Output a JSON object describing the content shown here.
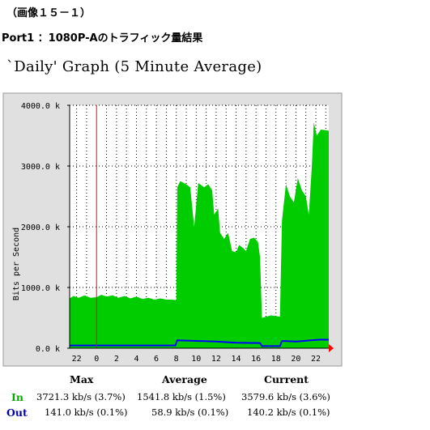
{
  "caption": "（画像１５－１）",
  "port_title": "Port1 ：1080P-Aのトラフィック量結果",
  "graph_title": "`Daily' Graph (5 Minute Average)",
  "chart_data": {
    "type": "area",
    "ylabel": "Bits per Second",
    "ylim": [
      0,
      4000
    ],
    "yticks": [
      0,
      1000,
      2000,
      3000,
      4000
    ],
    "ytick_labels": [
      "0.0 k",
      "1000.0 k",
      "2000.0 k",
      "3000.0 k",
      "4000.0 k"
    ],
    "xtick_labels": [
      "22",
      "0",
      "2",
      "4",
      "6",
      "8",
      "10",
      "12",
      "14",
      "16",
      "18",
      "20",
      "22"
    ],
    "x_hours_span": [
      -2.7,
      23.3
    ],
    "midnight_marker_hour": 0,
    "grid": true,
    "colors": {
      "plot_bg": "#ffffff",
      "frame_bg": "#e0e0e0",
      "in": "#00cc00",
      "out": "#0000ff",
      "grid": "#000000",
      "marker": "#ff0000"
    },
    "series": [
      {
        "name": "In",
        "color": "#00cc00",
        "points": [
          [
            -2.7,
            820
          ],
          [
            -2.3,
            860
          ],
          [
            -1.8,
            830
          ],
          [
            -1.2,
            870
          ],
          [
            -0.6,
            830
          ],
          [
            0,
            840
          ],
          [
            0.5,
            880
          ],
          [
            1.0,
            850
          ],
          [
            1.6,
            870
          ],
          [
            2.2,
            830
          ],
          [
            2.8,
            860
          ],
          [
            3.4,
            820
          ],
          [
            4.0,
            850
          ],
          [
            4.6,
            810
          ],
          [
            5.2,
            830
          ],
          [
            5.8,
            800
          ],
          [
            6.4,
            820
          ],
          [
            7.0,
            800
          ],
          [
            7.6,
            800
          ],
          [
            8.0,
            790
          ],
          [
            8.1,
            2650
          ],
          [
            8.4,
            2750
          ],
          [
            9.0,
            2700
          ],
          [
            9.4,
            2650
          ],
          [
            9.8,
            2000
          ],
          [
            10.2,
            2720
          ],
          [
            10.8,
            2650
          ],
          [
            11.2,
            2700
          ],
          [
            11.6,
            2600
          ],
          [
            11.8,
            2200
          ],
          [
            12.2,
            2300
          ],
          [
            12.4,
            1900
          ],
          [
            12.8,
            1800
          ],
          [
            13.2,
            1900
          ],
          [
            13.6,
            1600
          ],
          [
            14.0,
            1580
          ],
          [
            14.3,
            1700
          ],
          [
            14.7,
            1650
          ],
          [
            15.0,
            1600
          ],
          [
            15.4,
            1800
          ],
          [
            15.8,
            1820
          ],
          [
            16.2,
            1750
          ],
          [
            16.4,
            1500
          ],
          [
            16.6,
            500
          ],
          [
            17.5,
            540
          ],
          [
            18.4,
            520
          ],
          [
            18.6,
            2100
          ],
          [
            19.0,
            2700
          ],
          [
            19.4,
            2500
          ],
          [
            19.8,
            2400
          ],
          [
            20.2,
            2800
          ],
          [
            20.6,
            2600
          ],
          [
            21.0,
            2500
          ],
          [
            21.3,
            2200
          ],
          [
            21.6,
            3000
          ],
          [
            21.8,
            3721.3
          ],
          [
            22.1,
            3500
          ],
          [
            22.5,
            3600
          ],
          [
            23.0,
            3590
          ],
          [
            23.3,
            3579.6
          ]
        ]
      },
      {
        "name": "Out",
        "color": "#0000ff",
        "points": [
          [
            -2.7,
            45
          ],
          [
            0,
            45
          ],
          [
            4,
            45
          ],
          [
            7.9,
            45
          ],
          [
            8.1,
            130
          ],
          [
            10,
            120
          ],
          [
            12,
            110
          ],
          [
            14,
            90
          ],
          [
            16.4,
            85
          ],
          [
            16.6,
            35
          ],
          [
            18.4,
            35
          ],
          [
            18.6,
            120
          ],
          [
            20,
            110
          ],
          [
            21.5,
            130
          ],
          [
            22.5,
            141
          ],
          [
            23.3,
            140.2
          ]
        ]
      }
    ]
  },
  "stats": {
    "headers": [
      "Max",
      "Average",
      "Current"
    ],
    "rows": [
      {
        "label": "In",
        "values": [
          "3721.3 kb/s (3.7%)",
          "1541.8 kb/s (1.5%)",
          "3579.6 kb/s (3.6%)"
        ]
      },
      {
        "label": "Out",
        "values": [
          "141.0 kb/s (0.1%)",
          "58.9 kb/s (0.1%)",
          "140.2 kb/s (0.1%)"
        ]
      }
    ]
  }
}
